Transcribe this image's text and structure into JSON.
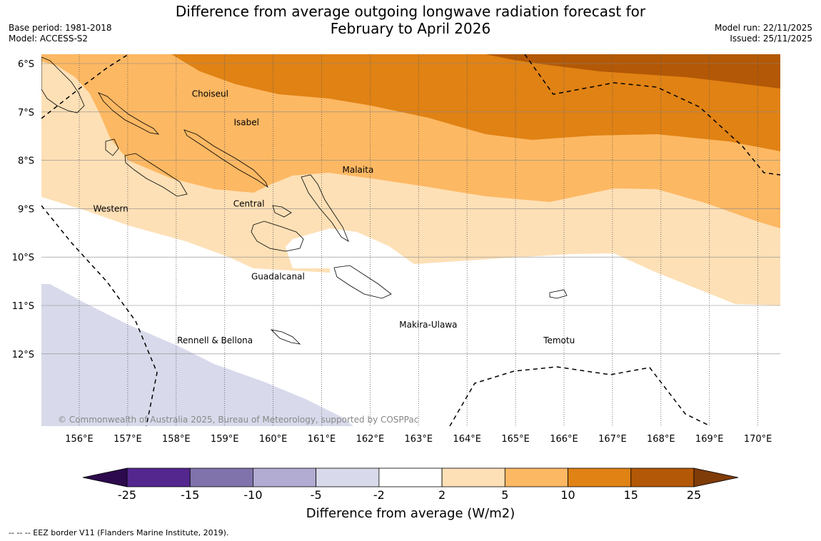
{
  "title": {
    "line1": "Difference from average outgoing longwave radiation forecast for",
    "line2": "February to April 2026"
  },
  "meta_left": {
    "base_period": "Base period: 1981-2018",
    "model": "Model: ACCESS-S2"
  },
  "meta_right": {
    "model_run": "Model run: 22/11/2025",
    "issued": "Issued: 25/11/2025"
  },
  "map": {
    "lat_labels": [
      "6°S",
      "7°S",
      "8°S",
      "9°S",
      "10°S",
      "11°S",
      "12°S"
    ],
    "lon_labels": [
      "156°E",
      "157°E",
      "158°E",
      "159°E",
      "160°E",
      "161°E",
      "162°E",
      "163°E",
      "164°E",
      "165°E",
      "166°E",
      "167°E",
      "168°E",
      "169°E",
      "170°E"
    ],
    "regions": [
      {
        "name": "Choiseul",
        "lon": 158.7,
        "lat": -6.63
      },
      {
        "name": "Isabel",
        "lon": 159.45,
        "lat": -7.22
      },
      {
        "name": "Malaita",
        "lon": 161.75,
        "lat": -8.2
      },
      {
        "name": "Central",
        "lon": 159.5,
        "lat": -8.9
      },
      {
        "name": "Western",
        "lon": 156.65,
        "lat": -9.0
      },
      {
        "name": "Guadalcanal",
        "lon": 160.1,
        "lat": -10.4
      },
      {
        "name": "Makira-Ulawa",
        "lon": 163.2,
        "lat": -11.4
      },
      {
        "name": "Rennell & Bellona",
        "lon": 158.8,
        "lat": -11.72
      },
      {
        "name": "Temotu",
        "lon": 165.9,
        "lat": -11.72
      }
    ],
    "copyright": "© Commonwealth of Australia 2025, Bureau of Meteorology, supported by COSPPac"
  },
  "colorbar": {
    "ticks": [
      "-25",
      "-15",
      "-10",
      "-5",
      "-2",
      "2",
      "5",
      "10",
      "15",
      "25"
    ],
    "colors": [
      "#2d0a4e",
      "#54278f",
      "#8073ac",
      "#b2abd2",
      "#d8daeb",
      "#ffffff",
      "#fee0b6",
      "#fdb863",
      "#e08214",
      "#b35806",
      "#7f3b08"
    ],
    "label": "Difference from average (W/m2)"
  },
  "legend": {
    "eez_text": "--  --  -- EEZ border V11 (Flanders Marine Institute, 2019)."
  }
}
